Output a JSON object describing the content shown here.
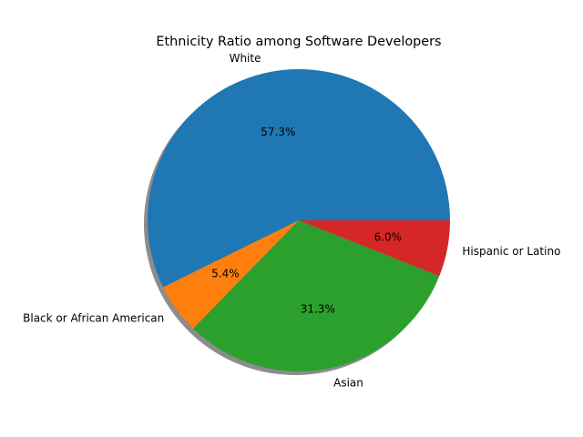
{
  "chart_data": {
    "type": "pie",
    "title": "Ethnicity Ratio among Software Developers",
    "slices": [
      {
        "label": "White",
        "value": 57.3,
        "pct_label": "57.3%",
        "color": "#1f77b4"
      },
      {
        "label": "Black or African American",
        "value": 5.4,
        "pct_label": "5.4%",
        "color": "#ff7f0e"
      },
      {
        "label": "Asian",
        "value": 31.3,
        "pct_label": "31.3%",
        "color": "#2ca02c"
      },
      {
        "label": "Hispanic or Latino",
        "value": 6.0,
        "pct_label": "6.0%",
        "color": "#d62728"
      }
    ],
    "start_angle_deg": 0,
    "direction": "counterclockwise",
    "shadow": true,
    "legend": false
  }
}
